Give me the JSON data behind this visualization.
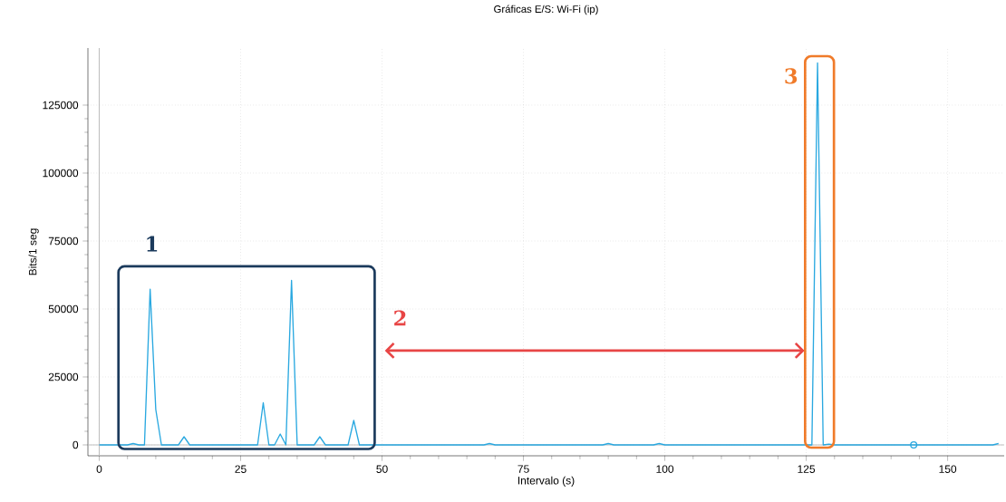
{
  "chart_data": {
    "type": "line",
    "title": "Gráficas E/S: Wi-Fi (ip)",
    "xlabel": "Intervalo (s)",
    "ylabel": "Bits/1 seg",
    "xlim": [
      -2,
      160
    ],
    "ylim": [
      -4000,
      146000
    ],
    "xticks": [
      0,
      25,
      50,
      75,
      100,
      125,
      150
    ],
    "yticks": [
      0,
      25000,
      50000,
      75000,
      100000,
      125000
    ],
    "grid": true,
    "series": [
      {
        "color": "#29a8e0",
        "x": [
          0,
          5,
          6,
          7,
          8,
          9,
          10,
          11,
          14,
          15,
          16,
          28,
          29,
          30,
          31,
          32,
          33,
          34,
          35,
          38,
          39,
          40,
          44,
          45,
          46,
          68,
          69,
          70,
          89,
          90,
          91,
          98,
          99,
          100,
          126,
          127,
          128,
          129,
          130,
          158,
          159
        ],
        "values": [
          0,
          0,
          500,
          0,
          0,
          57300,
          13000,
          0,
          0,
          3000,
          0,
          0,
          15500,
          0,
          0,
          4000,
          0,
          60500,
          0,
          0,
          3000,
          0,
          0,
          9000,
          0,
          0,
          500,
          0,
          0,
          500,
          0,
          0,
          500,
          0,
          0,
          140500,
          0,
          300,
          0,
          0,
          500
        ]
      },
      {
        "type": "scatter",
        "color": "#29a8e0",
        "marker": "circle",
        "x": [
          144
        ],
        "values": [
          0
        ]
      }
    ],
    "annotations": [
      "1",
      "2",
      "3"
    ]
  }
}
